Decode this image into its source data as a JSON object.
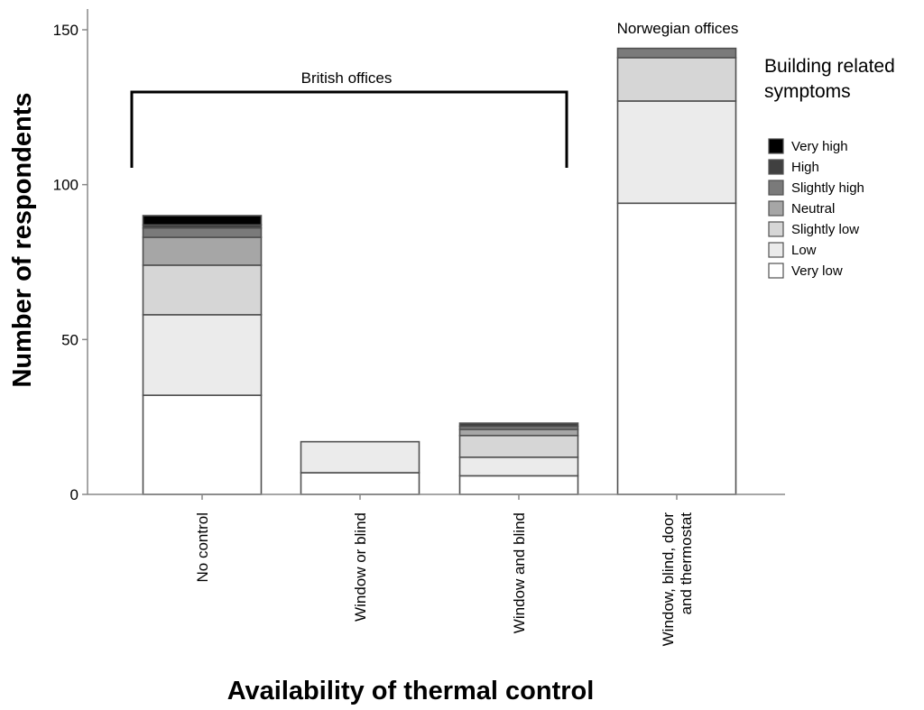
{
  "chart_data": {
    "type": "bar",
    "stacked": true,
    "xlabel": "Availability of thermal control",
    "ylabel": "Number of respondents",
    "ylim": [
      0,
      155
    ],
    "yticks": [
      0,
      50,
      100,
      150
    ],
    "categories": [
      "No control",
      "Window or blind",
      "Window and blind",
      "Window, blind, door and thermostat"
    ],
    "category_lines": [
      [
        "No control"
      ],
      [
        "Window or blind"
      ],
      [
        "Window and blind"
      ],
      [
        "Window, blind, door",
        "and thermostat"
      ]
    ],
    "series": [
      {
        "name": "Very low",
        "color": "#ffffff",
        "values": [
          32,
          7,
          6,
          94
        ]
      },
      {
        "name": "Low",
        "color": "#ebebeb",
        "values": [
          26,
          10,
          6,
          33
        ]
      },
      {
        "name": "Slightly low",
        "color": "#d6d6d6",
        "values": [
          16,
          0,
          7,
          14
        ]
      },
      {
        "name": "Neutral",
        "color": "#a6a6a6",
        "values": [
          9,
          0,
          2,
          0
        ]
      },
      {
        "name": "Slightly high",
        "color": "#7a7a7a",
        "values": [
          3,
          0,
          1,
          3
        ]
      },
      {
        "name": "High",
        "color": "#404040",
        "values": [
          1,
          0,
          1,
          0
        ]
      },
      {
        "name": "Very high",
        "color": "#000000",
        "values": [
          3,
          0,
          0,
          0
        ]
      }
    ],
    "legend": {
      "title_lines": [
        "Building related",
        "symptoms"
      ],
      "position": "right"
    },
    "annotations": {
      "british": "British offices",
      "norwegian": "Norwegian offices"
    }
  }
}
